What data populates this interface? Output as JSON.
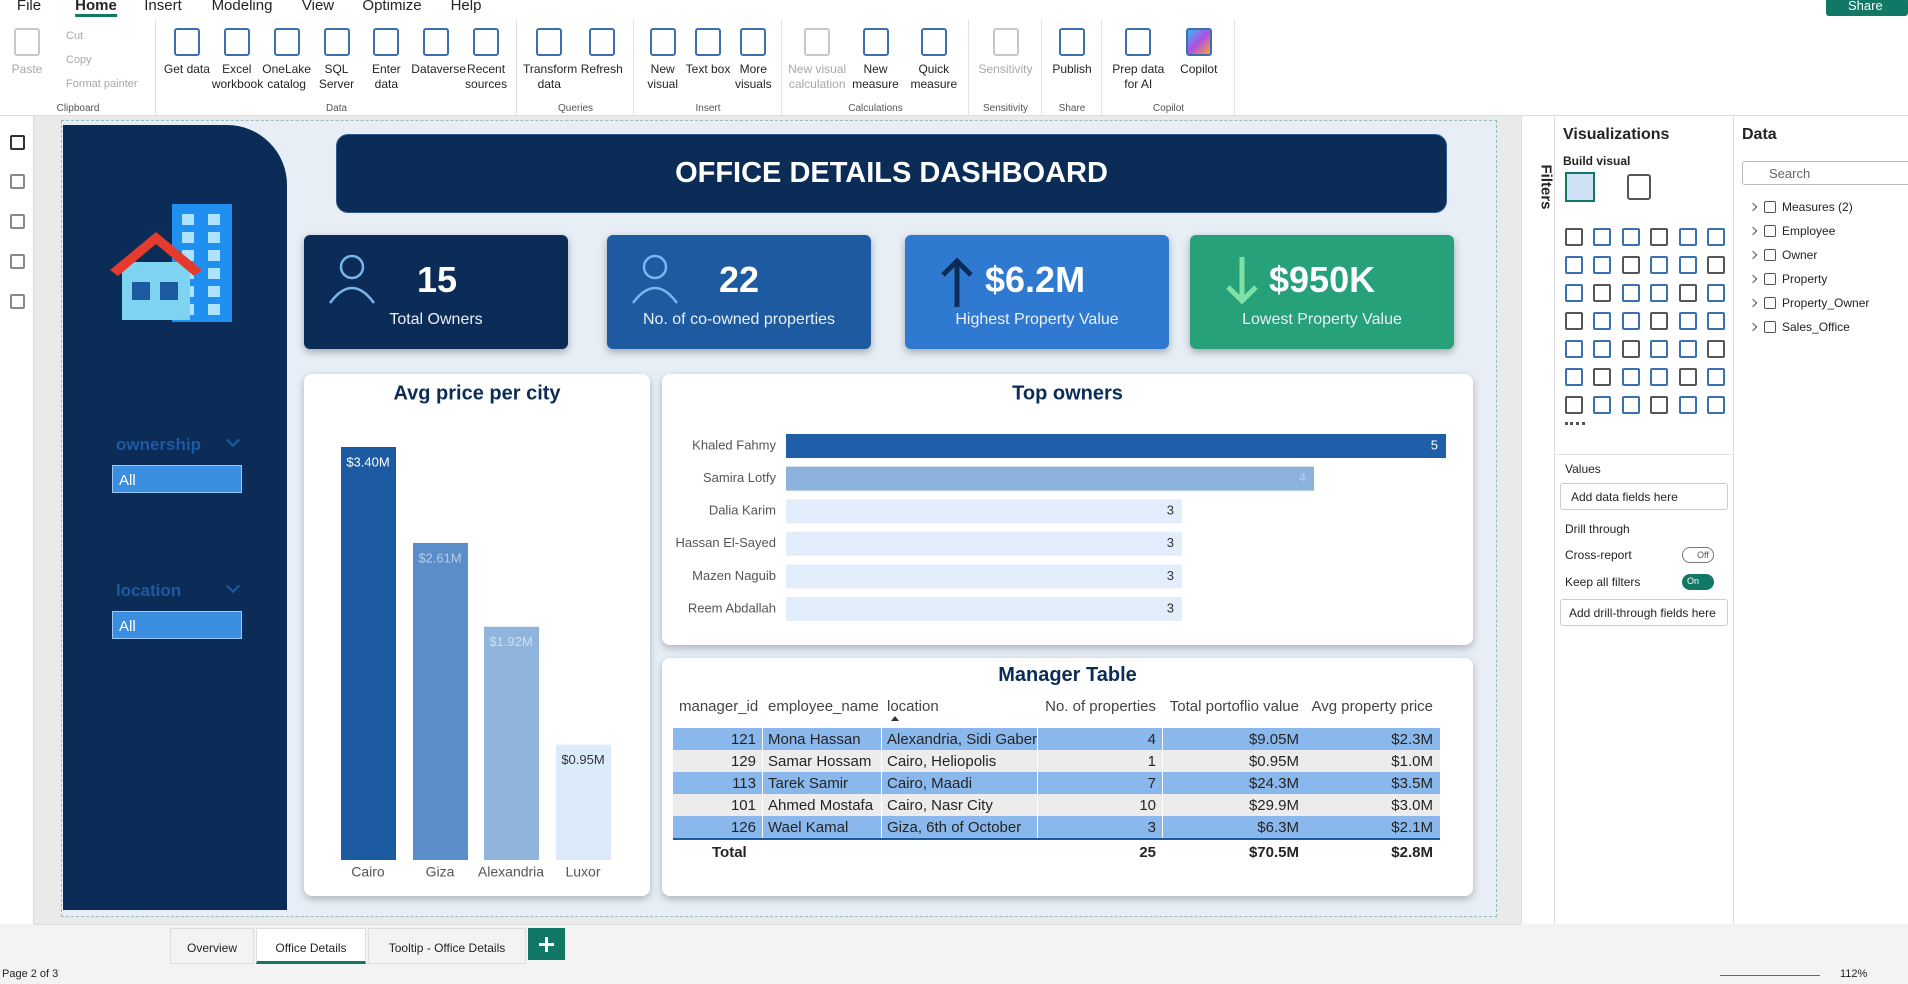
{
  "menu": [
    "File",
    "Home",
    "Insert",
    "Modeling",
    "View",
    "Optimize",
    "Help"
  ],
  "share": "Share",
  "ribbon": [
    {
      "label": "Clipboard",
      "items": [
        "Paste"
      ],
      "small": [
        "Cut",
        "Copy",
        "Format painter"
      ]
    },
    {
      "label": "Data",
      "items": [
        "Get data",
        "Excel workbook",
        "OneLake catalog",
        "SQL Server",
        "Enter data",
        "Dataverse",
        "Recent sources"
      ]
    },
    {
      "label": "Queries",
      "items": [
        "Transform data",
        "Refresh"
      ]
    },
    {
      "label": "Insert",
      "items": [
        "New visual",
        "Text box",
        "More visuals"
      ]
    },
    {
      "label": "Calculations",
      "items": [
        "New visual calculation",
        "New measure",
        "Quick measure"
      ]
    },
    {
      "label": "Sensitivity",
      "items": [
        "Sensitivity"
      ]
    },
    {
      "label": "Share",
      "items": [
        "Publish"
      ]
    },
    {
      "label": "Copilot",
      "items": [
        "Prep data for AI",
        "Copilot"
      ]
    }
  ],
  "dashboard_title": "OFFICE DETAILS DASHBOARD",
  "kpis": [
    {
      "value": "15",
      "label": "Total Owners"
    },
    {
      "value": "22",
      "label": "No. of co-owned properties"
    },
    {
      "value": "$6.2M",
      "label": "Highest Property Value"
    },
    {
      "value": "$950K",
      "label": "Lowest Property Value"
    }
  ],
  "slicers": [
    {
      "label": "ownership",
      "value": "All"
    },
    {
      "label": "location",
      "value": "All"
    }
  ],
  "chart_data": [
    {
      "type": "bar",
      "title": "Avg price per city",
      "categories": [
        "Cairo",
        "Giza",
        "Alexandria",
        "Luxor"
      ],
      "values": [
        3.4,
        2.61,
        1.92,
        0.95
      ],
      "value_labels": [
        "$3.40M",
        "$2.61M",
        "$1.92M",
        "$0.95M"
      ],
      "colors": [
        "#1c5aa2",
        "#5b8ec8",
        "#90b5dd",
        "#dcebfc"
      ]
    },
    {
      "type": "barh",
      "title": "Top owners",
      "categories": [
        "Khaled Fahmy",
        "Samira Lotfy",
        "Dalia Karim",
        "Hassan El-Sayed",
        "Mazen Naguib",
        "Reem Abdallah"
      ],
      "values": [
        5,
        4,
        3,
        3,
        3,
        3
      ],
      "colors": [
        "#1f5ea8",
        "#8db2dc",
        "#e2eefc",
        "#e2eefc",
        "#e2eefc",
        "#e2eefc"
      ]
    }
  ],
  "manager_table": {
    "title": "Manager Table",
    "columns": [
      "manager_id",
      "employee_name",
      "location",
      "No. of properties",
      "Total portoflio value",
      "Avg property price"
    ],
    "rows": [
      [
        "121",
        "Mona Hassan",
        "Alexandria, Sidi Gaber",
        "4",
        "$9.05M",
        "$2.3M"
      ],
      [
        "129",
        "Samar Hossam",
        "Cairo, Heliopolis",
        "1",
        "$0.95M",
        "$1.0M"
      ],
      [
        "113",
        "Tarek Samir",
        "Cairo, Maadi",
        "7",
        "$24.3M",
        "$3.5M"
      ],
      [
        "101",
        "Ahmed Mostafa",
        "Cairo, Nasr City",
        "10",
        "$29.9M",
        "$3.0M"
      ],
      [
        "126",
        "Wael Kamal",
        "Giza, 6th of October",
        "3",
        "$6.3M",
        "$2.1M"
      ]
    ],
    "total": {
      "label": "Total",
      "cells": [
        "25",
        "$70.5M",
        "$2.8M"
      ]
    }
  },
  "filters": "Filters",
  "visualizations": {
    "title": "Visualizations",
    "build": "Build visual",
    "values": "Values",
    "values_box": "Add data fields here",
    "drill": "Drill through",
    "cross": "Cross-report",
    "cross_state": "Off",
    "keep": "Keep all filters",
    "keep_state": "On",
    "drill_box": "Add drill-through fields here"
  },
  "data_pane": {
    "title": "Data",
    "search": "Search",
    "tables": [
      "Measures (2)",
      "Employee",
      "Owner",
      "Property",
      "Property_Owner",
      "Sales_Office"
    ]
  },
  "tabs": [
    "Overview",
    "Office Details",
    "Tooltip - Office Details"
  ],
  "status": {
    "page": "Page 2 of 3",
    "zoom": "112%"
  }
}
